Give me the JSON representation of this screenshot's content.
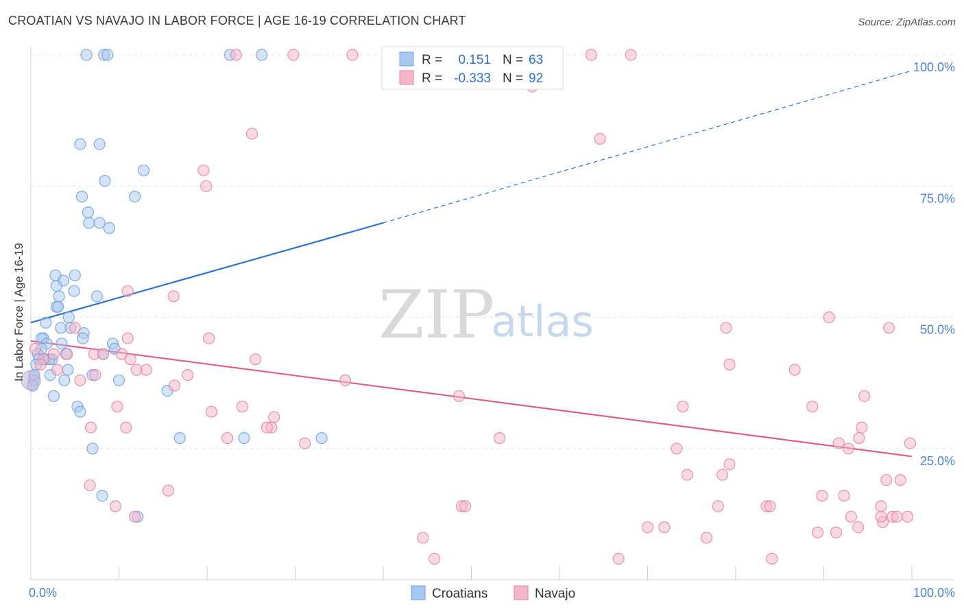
{
  "header": {
    "title": "CROATIAN VS NAVAJO IN LABOR FORCE | AGE 16-19 CORRELATION CHART",
    "source": "Source: ZipAtlas.com"
  },
  "watermark": {
    "zip": "ZIP",
    "atlas": "atlas"
  },
  "legend": {
    "rows": [
      {
        "r_label": "R =",
        "r_value": "0.151",
        "n_label": "N =",
        "n_value": "63",
        "color": "#a9c8ee"
      },
      {
        "r_label": "R =",
        "r_value": "-0.333",
        "n_label": "N =",
        "n_value": "92",
        "color": "#f4b6c8"
      }
    ]
  },
  "bottom_legend": [
    {
      "label": "Croatians",
      "color": "#a9c8ee"
    },
    {
      "label": "Navajo",
      "color": "#f4b6c8"
    }
  ],
  "chart_data": {
    "type": "scatter",
    "title": "CROATIAN VS NAVAJO IN LABOR FORCE | AGE 16-19 CORRELATION CHART",
    "xlabel": "",
    "ylabel": "In Labor Force | Age 16-19",
    "xlim": [
      0,
      100
    ],
    "ylim": [
      0,
      100
    ],
    "x_tick_labels": [
      "0.0%",
      "100.0%"
    ],
    "y_tick_labels": [
      "25.0%",
      "50.0%",
      "75.0%",
      "100.0%"
    ],
    "y_ticks": [
      25,
      50,
      75,
      100
    ],
    "grid": true,
    "series": [
      {
        "name": "Croatians",
        "color": "#6a9fe0",
        "fill": "#a9c8ee",
        "r": 0.151,
        "n": 63,
        "trend": {
          "x0": 0,
          "y0": 49,
          "x1": 40,
          "y1": 68,
          "dash_to_x": 100,
          "dash_to_y": 97,
          "color": "#2d72d2"
        },
        "points": [
          [
            6.3,
            100
          ],
          [
            8.3,
            100
          ],
          [
            8.7,
            100
          ],
          [
            22.6,
            100
          ],
          [
            26.2,
            100
          ],
          [
            5.6,
            83
          ],
          [
            7.8,
            83
          ],
          [
            8.4,
            76
          ],
          [
            12.8,
            78
          ],
          [
            5.8,
            73
          ],
          [
            11.8,
            73
          ],
          [
            6.5,
            70
          ],
          [
            6.6,
            68
          ],
          [
            7.8,
            68
          ],
          [
            8.9,
            67
          ],
          [
            2.8,
            58
          ],
          [
            5.0,
            58
          ],
          [
            3.7,
            57
          ],
          [
            4.9,
            55
          ],
          [
            2.9,
            56
          ],
          [
            3.2,
            54
          ],
          [
            7.5,
            54
          ],
          [
            2.9,
            52
          ],
          [
            3.1,
            52
          ],
          [
            4.3,
            50
          ],
          [
            1.7,
            49
          ],
          [
            4.5,
            48
          ],
          [
            3.4,
            48
          ],
          [
            6.0,
            47
          ],
          [
            5.9,
            46
          ],
          [
            1.4,
            46
          ],
          [
            1.2,
            46
          ],
          [
            1.8,
            45
          ],
          [
            3.5,
            45
          ],
          [
            9.3,
            45
          ],
          [
            9.5,
            44
          ],
          [
            1.2,
            44
          ],
          [
            0.8,
            43
          ],
          [
            4.0,
            43
          ],
          [
            2.4,
            42
          ],
          [
            8.2,
            43
          ],
          [
            1.6,
            42
          ],
          [
            2.1,
            42
          ],
          [
            0.9,
            42
          ],
          [
            0.6,
            41
          ],
          [
            4.2,
            40
          ],
          [
            2.2,
            39
          ],
          [
            7.0,
            39
          ],
          [
            0.4,
            39
          ],
          [
            0.3,
            38
          ],
          [
            0.2,
            37
          ],
          [
            3.8,
            38
          ],
          [
            10.0,
            38
          ],
          [
            15.5,
            36
          ],
          [
            2.6,
            35
          ],
          [
            5.3,
            33
          ],
          [
            5.6,
            32
          ],
          [
            16.9,
            27
          ],
          [
            24.2,
            27
          ],
          [
            33.0,
            27
          ],
          [
            7.0,
            25
          ],
          [
            8.1,
            16
          ],
          [
            12.1,
            12
          ]
        ]
      },
      {
        "name": "Navajo",
        "color": "#e67fa2",
        "fill": "#f4b6c8",
        "r": -0.333,
        "n": 92,
        "trend": {
          "x0": 0,
          "y0": 45.5,
          "x1": 100,
          "y1": 23.5,
          "color": "#e05c8c"
        },
        "points": [
          [
            23.3,
            100
          ],
          [
            29.8,
            100
          ],
          [
            36.5,
            100
          ],
          [
            63.6,
            100
          ],
          [
            68.1,
            100
          ],
          [
            56.9,
            94
          ],
          [
            25.1,
            85
          ],
          [
            64.6,
            84
          ],
          [
            19.6,
            78
          ],
          [
            19.9,
            75
          ],
          [
            11.0,
            55
          ],
          [
            16.2,
            54
          ],
          [
            5.0,
            48
          ],
          [
            11.0,
            46
          ],
          [
            20.2,
            46
          ],
          [
            90.6,
            50
          ],
          [
            97.4,
            48
          ],
          [
            78.9,
            48
          ],
          [
            2.6,
            43
          ],
          [
            4.1,
            43
          ],
          [
            7.2,
            43
          ],
          [
            8.2,
            43
          ],
          [
            10.3,
            43
          ],
          [
            11.3,
            42
          ],
          [
            12.0,
            40
          ],
          [
            13.1,
            40
          ],
          [
            0.5,
            44
          ],
          [
            1.4,
            42
          ],
          [
            1.1,
            41
          ],
          [
            3.0,
            40
          ],
          [
            5.6,
            38
          ],
          [
            7.3,
            39
          ],
          [
            17.8,
            39
          ],
          [
            16.3,
            37
          ],
          [
            25.5,
            42
          ],
          [
            35.7,
            38
          ],
          [
            48.6,
            35
          ],
          [
            79.3,
            41
          ],
          [
            86.7,
            40
          ],
          [
            94.6,
            35
          ],
          [
            74.0,
            33
          ],
          [
            88.7,
            33
          ],
          [
            9.8,
            33
          ],
          [
            20.5,
            32
          ],
          [
            24.0,
            33
          ],
          [
            27.6,
            31
          ],
          [
            27.3,
            29
          ],
          [
            6.8,
            29
          ],
          [
            10.8,
            29
          ],
          [
            22.3,
            27
          ],
          [
            26.8,
            29
          ],
          [
            31.1,
            26
          ],
          [
            53.2,
            27
          ],
          [
            73.3,
            25
          ],
          [
            91.7,
            26
          ],
          [
            92.8,
            25
          ],
          [
            94.0,
            27
          ],
          [
            94.3,
            29
          ],
          [
            99.8,
            26
          ],
          [
            6.7,
            18
          ],
          [
            9.6,
            14
          ],
          [
            11.8,
            12
          ],
          [
            15.6,
            17
          ],
          [
            44.5,
            8
          ],
          [
            45.8,
            4
          ],
          [
            48.9,
            14
          ],
          [
            49.3,
            14
          ],
          [
            70.0,
            10
          ],
          [
            71.9,
            10
          ],
          [
            76.7,
            8
          ],
          [
            78.5,
            20
          ],
          [
            79.3,
            22
          ],
          [
            78.0,
            14
          ],
          [
            74.5,
            20
          ],
          [
            83.5,
            14
          ],
          [
            84.1,
            4
          ],
          [
            83.9,
            14
          ],
          [
            89.3,
            9
          ],
          [
            89.8,
            16
          ],
          [
            93.1,
            12
          ],
          [
            91.4,
            9
          ],
          [
            92.3,
            16
          ],
          [
            93.9,
            10
          ],
          [
            96.7,
            11
          ],
          [
            97.8,
            12
          ],
          [
            98.3,
            12
          ],
          [
            97.1,
            19
          ],
          [
            96.5,
            12
          ],
          [
            98.7,
            19
          ],
          [
            99.5,
            12
          ],
          [
            96.5,
            14
          ],
          [
            66.7,
            4
          ]
        ]
      }
    ]
  }
}
